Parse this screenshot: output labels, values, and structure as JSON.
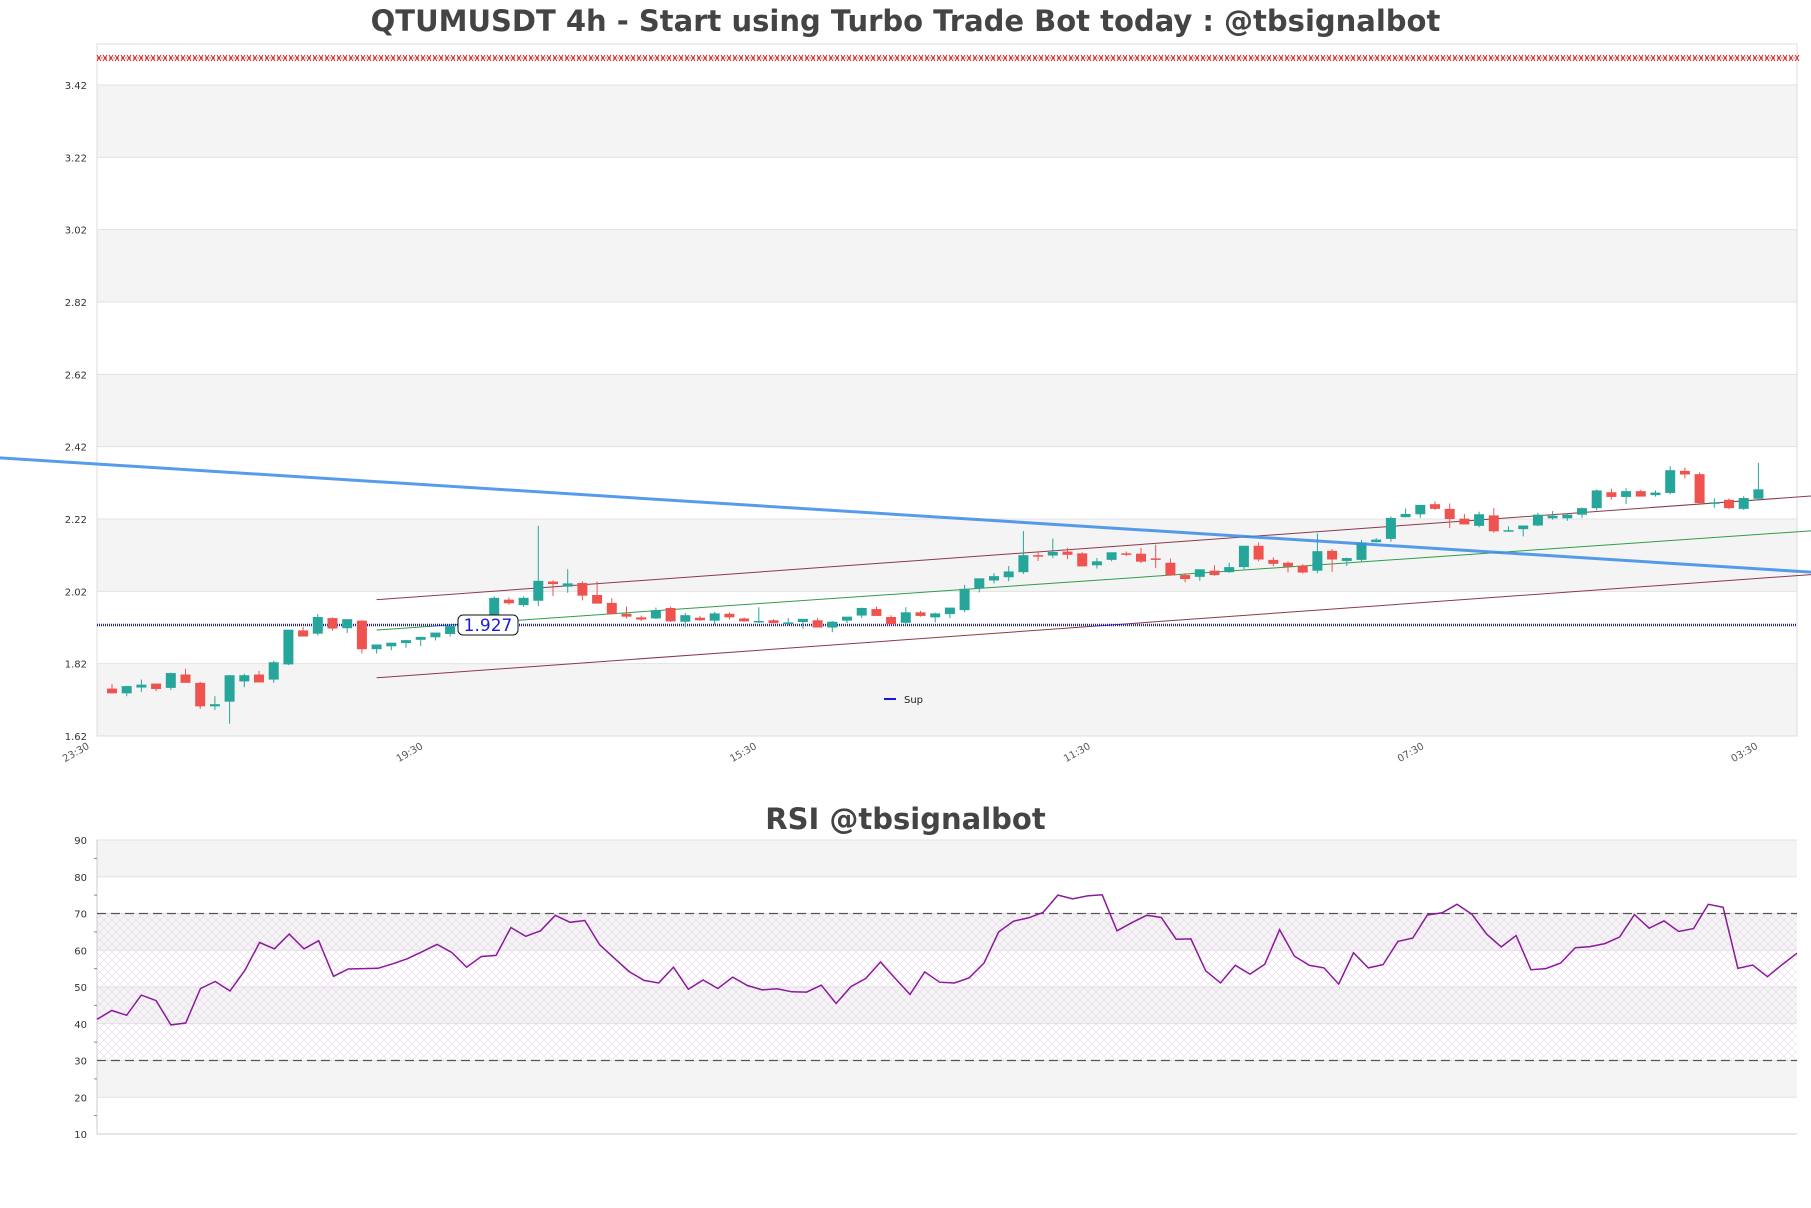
{
  "colors": {
    "up": "#26a69a",
    "down": "#ef5350",
    "band": "#f4f4f4",
    "resistance_line": "#3a8be8",
    "support_line": "#1a1ad0",
    "channel": "#8b3a4a",
    "midline": "#2e9e4a",
    "rsi_line": "#8b1a9a",
    "rsi_guides": "#555555",
    "marker": "#d02020"
  },
  "chart_data": [
    {
      "type": "candlestick",
      "title": "QTUMUSDT 4h - Start using Turbo Trade Bot today : @tbsignalbot",
      "y_ticks": [
        "3.42",
        "3.22",
        "3.02",
        "2.82",
        "2.62",
        "2.42",
        "2.22",
        "2.02",
        "1.82",
        "1.62"
      ],
      "ylim": [
        1.62,
        3.42
      ],
      "x_ticks": [
        "23:30",
        "19:30",
        "15:30",
        "11:30",
        "07:30",
        "03:30"
      ],
      "support_level": 1.927,
      "support_label": "1.927",
      "legend": [
        {
          "name": "Sup"
        }
      ],
      "legend_position": "bottom-center",
      "grid": "horizontal-bands",
      "candles": [
        [
          1.751,
          1.764,
          1.737,
          1.738
        ],
        [
          1.738,
          1.759,
          1.73,
          1.758
        ],
        [
          1.754,
          1.776,
          1.742,
          1.762
        ],
        [
          1.765,
          1.765,
          1.744,
          1.75
        ],
        [
          1.753,
          1.795,
          1.747,
          1.794
        ],
        [
          1.79,
          1.806,
          1.774,
          1.767
        ],
        [
          1.767,
          1.77,
          1.695,
          1.702
        ],
        [
          1.702,
          1.73,
          1.692,
          1.708
        ],
        [
          1.715,
          1.789,
          1.654,
          1.788
        ],
        [
          1.771,
          1.792,
          1.755,
          1.788
        ],
        [
          1.79,
          1.8,
          1.774,
          1.768
        ],
        [
          1.776,
          1.828,
          1.767,
          1.824
        ],
        [
          1.818,
          1.9,
          1.816,
          1.914
        ],
        [
          1.912,
          1.921,
          1.897,
          1.895
        ],
        [
          1.903,
          1.957,
          1.898,
          1.949
        ],
        [
          1.946,
          1.948,
          1.911,
          1.917
        ],
        [
          1.918,
          1.943,
          1.905,
          1.943
        ],
        [
          1.939,
          1.94,
          1.848,
          1.86
        ],
        [
          1.86,
          1.87,
          1.848,
          1.873
        ],
        [
          1.868,
          1.877,
          1.857,
          1.878
        ],
        [
          1.877,
          1.885,
          1.864,
          1.885
        ],
        [
          1.886,
          1.892,
          1.869,
          1.894
        ],
        [
          1.893,
          1.901,
          1.884,
          1.906
        ],
        [
          1.902,
          1.92,
          1.895,
          1.924
        ],
        [
          1.922,
          1.942,
          1.916,
          1.944
        ],
        [
          1.942,
          1.949,
          1.929,
          1.947
        ],
        [
          1.941,
          2.006,
          1.935,
          2.002
        ],
        [
          1.997,
          2.003,
          1.983,
          1.987
        ],
        [
          1.982,
          2.006,
          1.977,
          2.002
        ],
        [
          1.994,
          2.201,
          1.979,
          2.049
        ],
        [
          2.047,
          2.05,
          2.007,
          2.04
        ],
        [
          2.033,
          2.081,
          2.016,
          2.042
        ],
        [
          2.043,
          2.048,
          1.995,
          2.008
        ],
        [
          2.01,
          2.047,
          1.987,
          1.986
        ],
        [
          1.988,
          2.001,
          1.962,
          1.957
        ],
        [
          1.958,
          1.978,
          1.945,
          1.95
        ],
        [
          1.948,
          1.953,
          1.938,
          1.942
        ],
        [
          1.945,
          1.975,
          1.943,
          1.968
        ],
        [
          1.974,
          1.978,
          1.935,
          1.937
        ],
        [
          1.936,
          1.96,
          1.921,
          1.954
        ],
        [
          1.947,
          1.952,
          1.938,
          1.94
        ],
        [
          1.939,
          1.963,
          1.928,
          1.959
        ],
        [
          1.958,
          1.962,
          1.942,
          1.948
        ],
        [
          1.945,
          1.948,
          1.936,
          1.937
        ],
        [
          1.936,
          1.976,
          1.933,
          1.938
        ],
        [
          1.94,
          1.943,
          1.932,
          1.932
        ],
        [
          1.93,
          1.946,
          1.926,
          1.934
        ],
        [
          1.935,
          1.943,
          1.917,
          1.944
        ],
        [
          1.94,
          1.946,
          1.921,
          1.92
        ],
        [
          1.92,
          1.938,
          1.907,
          1.936
        ],
        [
          1.939,
          1.948,
          1.932,
          1.95
        ],
        [
          1.953,
          1.975,
          1.946,
          1.974
        ],
        [
          1.971,
          1.978,
          1.955,
          1.952
        ],
        [
          1.949,
          1.954,
          1.94,
          1.929
        ],
        [
          1.933,
          1.976,
          1.928,
          1.962
        ],
        [
          1.962,
          1.966,
          1.95,
          1.952
        ],
        [
          1.948,
          1.961,
          1.934,
          1.959
        ],
        [
          1.957,
          1.971,
          1.946,
          1.975
        ],
        [
          1.968,
          2.038,
          1.962,
          2.027
        ],
        [
          2.028,
          2.048,
          2.017,
          2.056
        ],
        [
          2.05,
          2.07,
          2.042,
          2.062
        ],
        [
          2.059,
          2.09,
          2.048,
          2.075
        ],
        [
          2.073,
          2.187,
          2.068,
          2.12
        ],
        [
          2.12,
          2.129,
          2.104,
          2.119
        ],
        [
          2.119,
          2.166,
          2.112,
          2.129
        ],
        [
          2.13,
          2.14,
          2.109,
          2.121
        ],
        [
          2.125,
          2.128,
          2.089,
          2.089
        ],
        [
          2.092,
          2.112,
          2.083,
          2.103
        ],
        [
          2.107,
          2.124,
          2.103,
          2.128
        ],
        [
          2.125,
          2.13,
          2.118,
          2.122
        ],
        [
          2.124,
          2.14,
          2.098,
          2.102
        ],
        [
          2.111,
          2.149,
          2.084,
          2.107
        ],
        [
          2.099,
          2.111,
          2.063,
          2.064
        ],
        [
          2.065,
          2.07,
          2.045,
          2.054
        ],
        [
          2.06,
          2.081,
          2.049,
          2.081
        ],
        [
          2.077,
          2.092,
          2.063,
          2.065
        ],
        [
          2.073,
          2.099,
          2.071,
          2.087
        ],
        [
          2.087,
          2.129,
          2.081,
          2.146
        ],
        [
          2.146,
          2.155,
          2.103,
          2.108
        ],
        [
          2.107,
          2.114,
          2.089,
          2.096
        ],
        [
          2.099,
          2.103,
          2.072,
          2.088
        ],
        [
          2.091,
          2.095,
          2.069,
          2.072
        ],
        [
          2.077,
          2.18,
          2.07,
          2.131
        ],
        [
          2.132,
          2.137,
          2.074,
          2.108
        ],
        [
          2.104,
          2.113,
          2.09,
          2.112
        ],
        [
          2.107,
          2.162,
          2.101,
          2.155
        ],
        [
          2.156,
          2.167,
          2.155,
          2.163
        ],
        [
          2.165,
          2.227,
          2.157,
          2.223
        ],
        [
          2.225,
          2.249,
          2.224,
          2.234
        ],
        [
          2.233,
          2.254,
          2.223,
          2.259
        ],
        [
          2.261,
          2.269,
          2.245,
          2.248
        ],
        [
          2.248,
          2.263,
          2.195,
          2.22
        ],
        [
          2.221,
          2.234,
          2.208,
          2.205
        ],
        [
          2.201,
          2.24,
          2.197,
          2.233
        ],
        [
          2.23,
          2.25,
          2.182,
          2.186
        ],
        [
          2.187,
          2.2,
          2.186,
          2.189
        ],
        [
          2.192,
          2.202,
          2.172,
          2.202
        ],
        [
          2.202,
          2.238,
          2.2,
          2.232
        ],
        [
          2.222,
          2.242,
          2.218,
          2.229
        ],
        [
          2.222,
          2.235,
          2.215,
          2.232
        ],
        [
          2.232,
          2.252,
          2.223,
          2.25
        ],
        [
          2.25,
          2.302,
          2.244,
          2.299
        ],
        [
          2.294,
          2.304,
          2.274,
          2.281
        ],
        [
          2.281,
          2.305,
          2.261,
          2.297
        ],
        [
          2.297,
          2.301,
          2.284,
          2.282
        ],
        [
          2.286,
          2.299,
          2.282,
          2.293
        ],
        [
          2.292,
          2.366,
          2.288,
          2.355
        ],
        [
          2.353,
          2.362,
          2.332,
          2.343
        ],
        [
          2.344,
          2.349,
          2.259,
          2.264
        ],
        [
          2.266,
          2.277,
          2.251,
          2.266
        ],
        [
          2.273,
          2.277,
          2.247,
          2.25
        ],
        [
          2.248,
          2.283,
          2.245,
          2.278
        ],
        [
          2.276,
          2.375,
          2.271,
          2.302
        ]
      ],
      "channel_upper": [
        [
          18,
          1.997
        ],
        [
          161,
          2.417
        ]
      ],
      "channel_lower": [
        [
          18,
          1.781
        ],
        [
          161,
          2.199
        ]
      ],
      "channel_mid": [
        [
          18,
          1.913
        ],
        [
          161,
          2.315
        ]
      ],
      "resistance_trendline": [
        [
          -8,
          2.39
        ],
        [
          176,
          1.918
        ]
      ]
    },
    {
      "type": "line",
      "title": "RSI @tbsignalbot",
      "y_ticks": [
        "90",
        "80",
        "70",
        "60",
        "50",
        "40",
        "30",
        "20",
        "10"
      ],
      "ylim": [
        10,
        90
      ],
      "guide_levels": [
        70,
        30
      ],
      "values": [
        41.2,
        43.6,
        42.3,
        47.8,
        46.3,
        39.7,
        40.2,
        49.6,
        51.5,
        48.9,
        54.5,
        62.1,
        60.4,
        64.4,
        60.4,
        62.6,
        52.9,
        54.9,
        55.0,
        55.1,
        56.3,
        57.7,
        59.6,
        61.6,
        59.4,
        55.4,
        58.3,
        58.6,
        66.2,
        63.8,
        65.3,
        69.5,
        67.6,
        68.1,
        61.5,
        57.8,
        54.2,
        51.8,
        51.1,
        55.4,
        49.4,
        51.9,
        49.6,
        52.7,
        50.4,
        49.2,
        49.5,
        48.7,
        48.6,
        50.5,
        45.5,
        50.1,
        52.3,
        56.8,
        52.3,
        48.0,
        54.1,
        51.3,
        51.1,
        52.5,
        56.5,
        65.0,
        67.9,
        68.8,
        70.3,
        75.0,
        74.0,
        74.8,
        75.1,
        65.3,
        67.5,
        69.5,
        68.9,
        63.0,
        63.1,
        54.4,
        51.1,
        55.9,
        53.5,
        56.2,
        65.6,
        58.4,
        55.9,
        55.2,
        50.8,
        59.3,
        55.2,
        56.1,
        62.4,
        63.3,
        69.6,
        70.2,
        72.5,
        69.8,
        64.4,
        60.9,
        64.0,
        54.7,
        55.0,
        56.5,
        60.7,
        61.0,
        61.8,
        63.6,
        69.7,
        66.0,
        68.0,
        65.1,
        65.9,
        72.5,
        71.7,
        55.1,
        56.0,
        52.8,
        56.1,
        59.2
      ]
    }
  ]
}
